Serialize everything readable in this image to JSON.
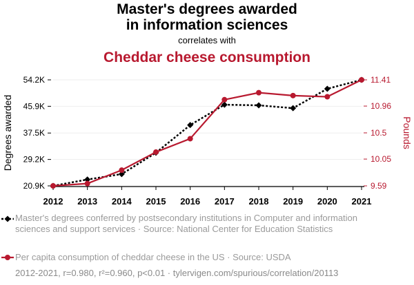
{
  "header": {
    "title_line1": "Master's degrees awarded",
    "title_line2": "in information sciences",
    "subtitle": "correlates with",
    "title2": "Cheddar cheese consumption"
  },
  "chart_data": {
    "type": "line",
    "x": [
      2012,
      2013,
      2014,
      2015,
      2016,
      2017,
      2018,
      2019,
      2020,
      2021
    ],
    "series": [
      {
        "name": "Master's degrees conferred by postsecondary institutions in Computer and information sciences and support services · Source: National Center for Education Statistics",
        "axis": "left",
        "color": "#000000",
        "marker": "diamond",
        "dashed": true,
        "values": [
          20900,
          22900,
          24600,
          31300,
          40000,
          46400,
          46200,
          45300,
          51400,
          54200
        ]
      },
      {
        "name": "Per capita consumption of cheddar cheese in the US · Source: USDA",
        "axis": "right",
        "color": "#b8192f",
        "marker": "circle",
        "dashed": false,
        "values": [
          9.59,
          9.63,
          9.86,
          10.17,
          10.4,
          11.07,
          11.19,
          11.14,
          11.12,
          11.41
        ]
      }
    ],
    "y_left": {
      "label": "Degrees awarded",
      "range": [
        20900,
        54200
      ],
      "ticks": [
        20900,
        29200,
        37500,
        45900,
        54200
      ],
      "tick_labels": [
        "20.9K",
        "29.2K",
        "37.5K",
        "45.9K",
        "54.2K"
      ]
    },
    "y_right": {
      "label": "Pounds",
      "range": [
        9.59,
        11.41
      ],
      "ticks": [
        9.59,
        10.05,
        10.5,
        10.96,
        11.41
      ],
      "tick_labels": [
        "9.59",
        "10.05",
        "10.5",
        "10.96",
        "11.41"
      ],
      "color": "#b8192f"
    },
    "grid": true,
    "legend_position": "bottom"
  },
  "footer": "2012-2021, r=0.980, r²=0.960, p<0.01 · tylervigen.com/spurious/correlation/20113"
}
